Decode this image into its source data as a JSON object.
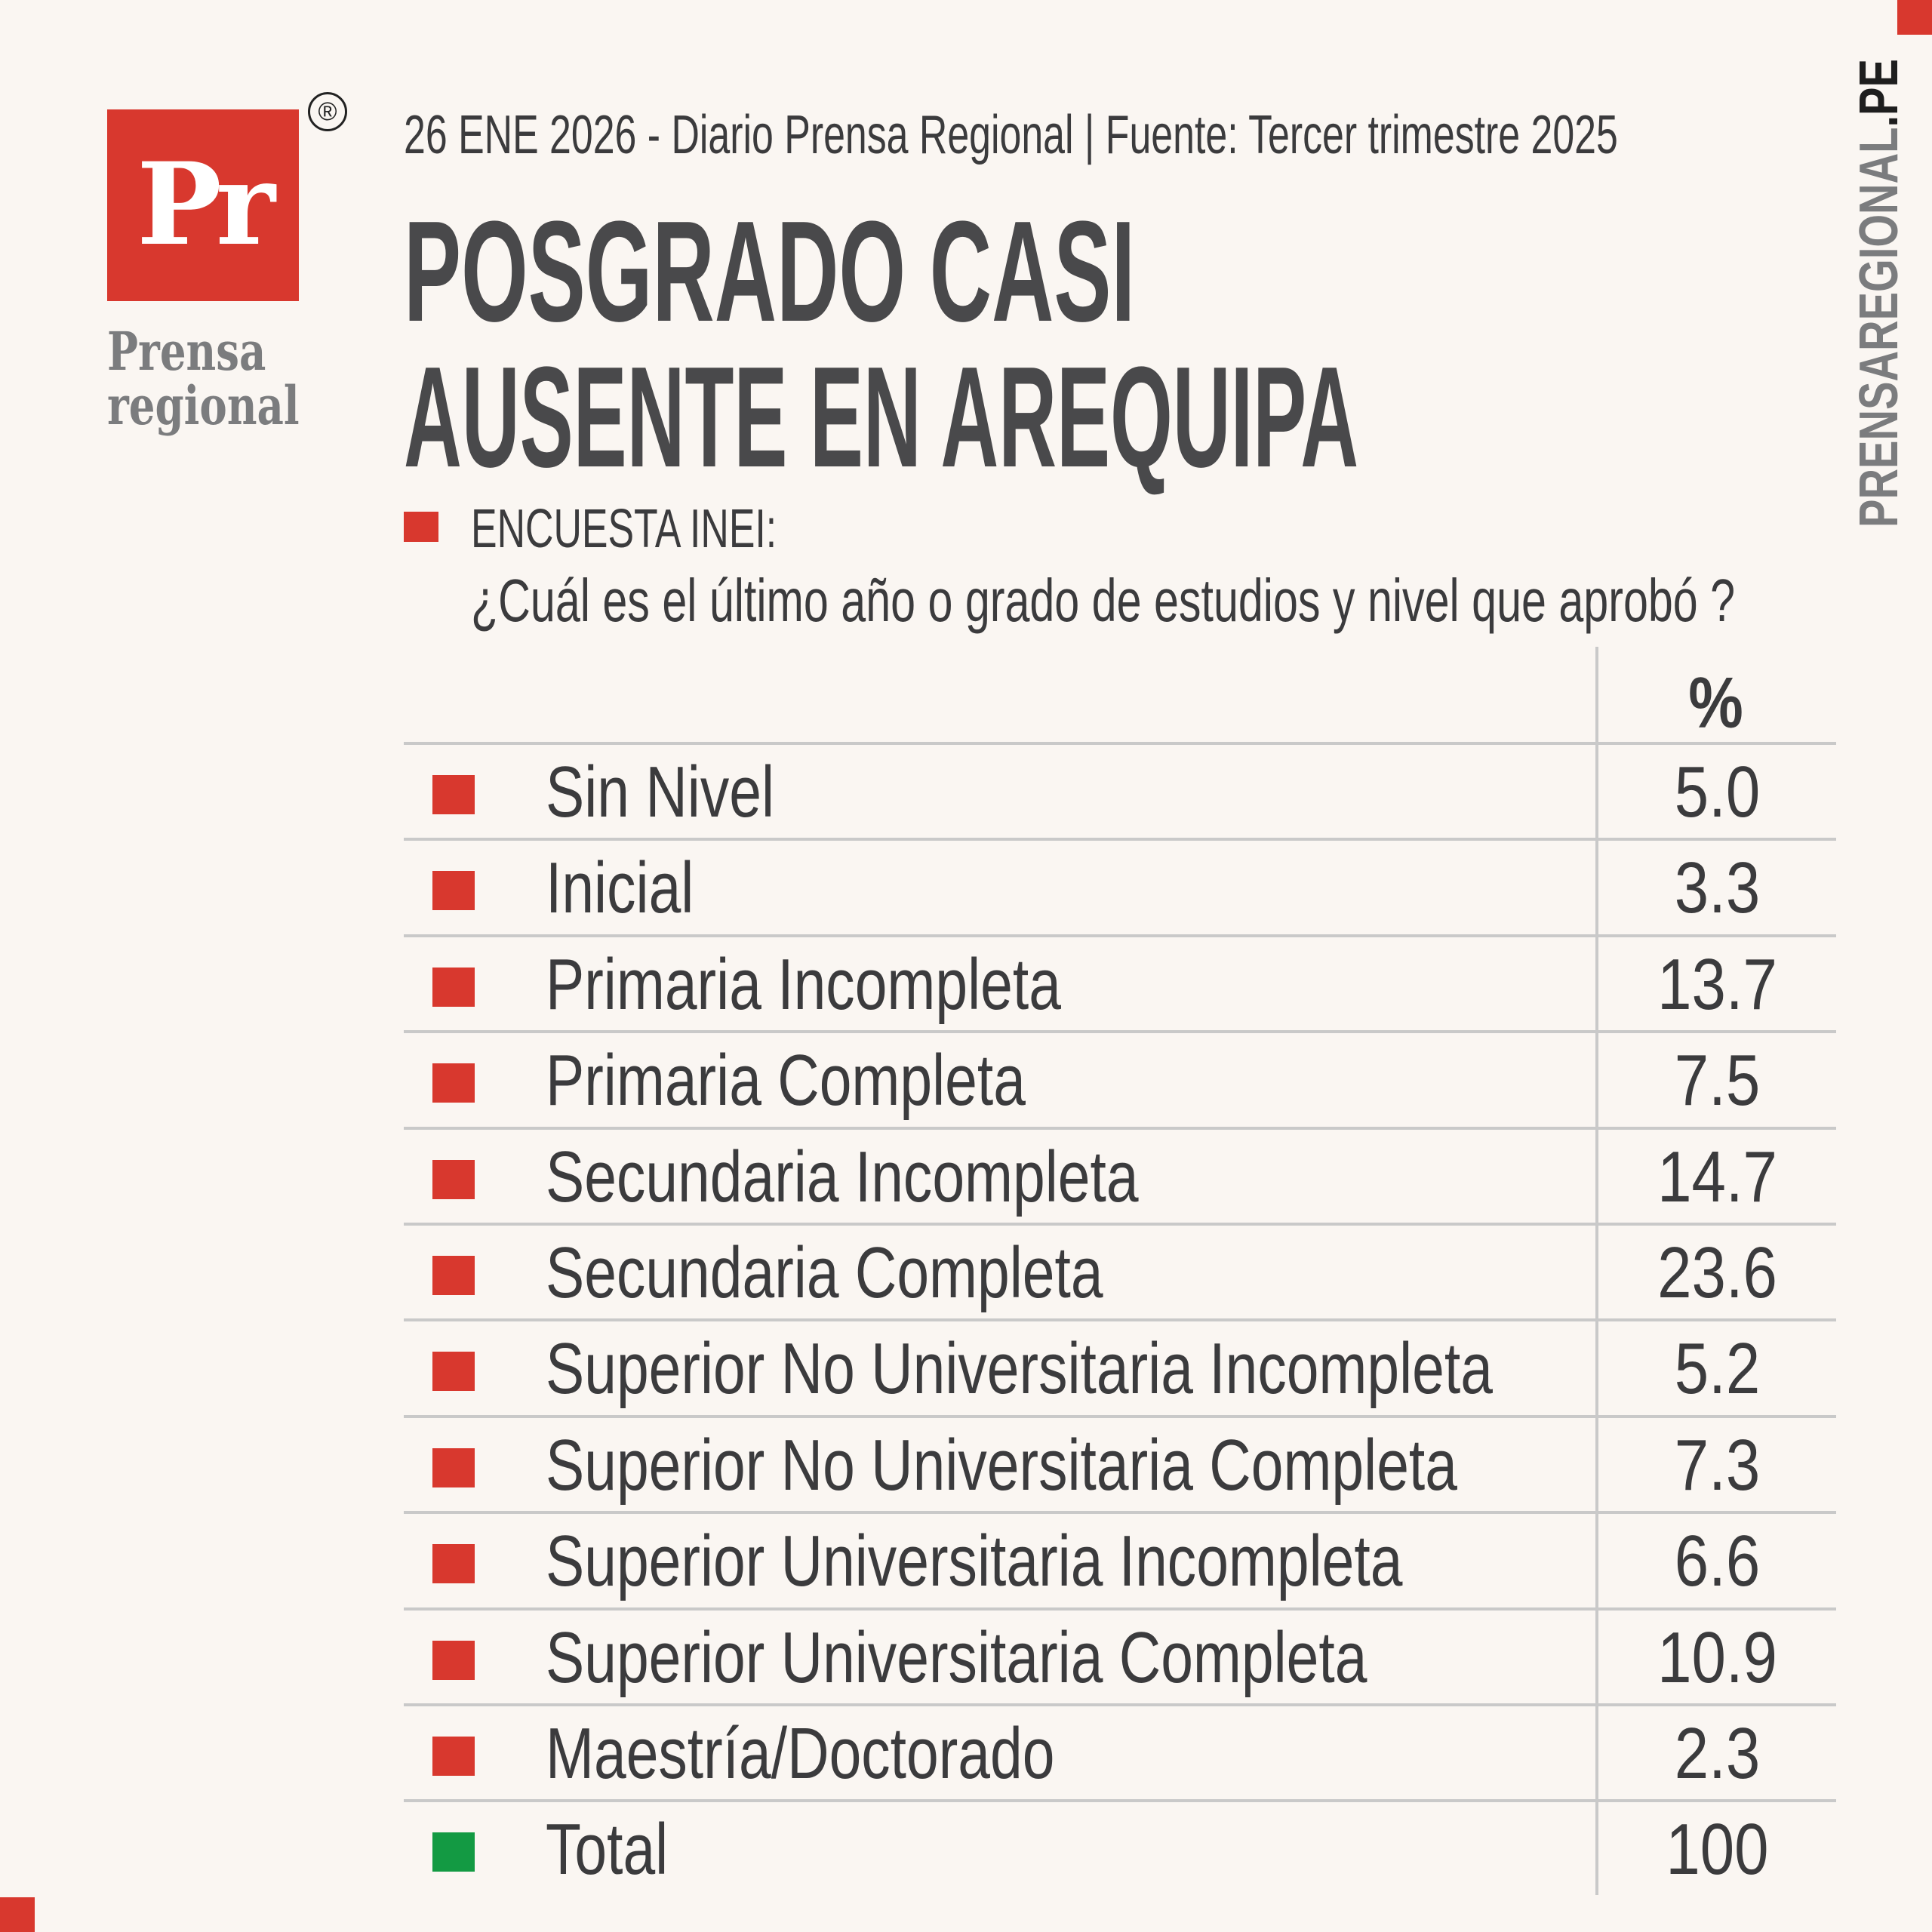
{
  "brand": {
    "logo_letters": "Pr",
    "registered_mark": "®",
    "name_line1": "Prensa",
    "name_line2": "regional",
    "website_main": "PRENSAREGIONAL",
    "website_tld": ".PE"
  },
  "header": {
    "dateline": "26 ENE 2026 - Diario Prensa Regional | Fuente: Tercer trimestre 2025",
    "title_line1": "POSGRADO CASI",
    "title_line2": "AUSENTE EN AREQUIPA",
    "survey_label": "ENCUESTA INEI:",
    "question": "¿Cuál es el último año o grado de estudios y nivel que aprobó ?"
  },
  "colors": {
    "accent": "#d8382e",
    "total": "#139a43",
    "background": "#faf6f2"
  },
  "table": {
    "value_header": "%",
    "rows": [
      {
        "label": "Sin Nivel",
        "value": "5.0"
      },
      {
        "label": "Inicial",
        "value": "3.3"
      },
      {
        "label": "Primaria Incompleta",
        "value": "13.7"
      },
      {
        "label": "Primaria Completa",
        "value": "7.5"
      },
      {
        "label": "Secundaria Incompleta",
        "value": "14.7"
      },
      {
        "label": "Secundaria Completa",
        "value": "23.6"
      },
      {
        "label": "Superior No Universitaria Incompleta",
        "value": "5.2"
      },
      {
        "label": "Superior No Universitaria Completa",
        "value": "7.3"
      },
      {
        "label": "Superior Universitaria Incompleta",
        "value": "6.6"
      },
      {
        "label": "Superior Universitaria Completa",
        "value": "10.9"
      },
      {
        "label": "Maestría/Doctorado",
        "value": "2.3"
      },
      {
        "label": "Total",
        "value": "100"
      }
    ]
  }
}
